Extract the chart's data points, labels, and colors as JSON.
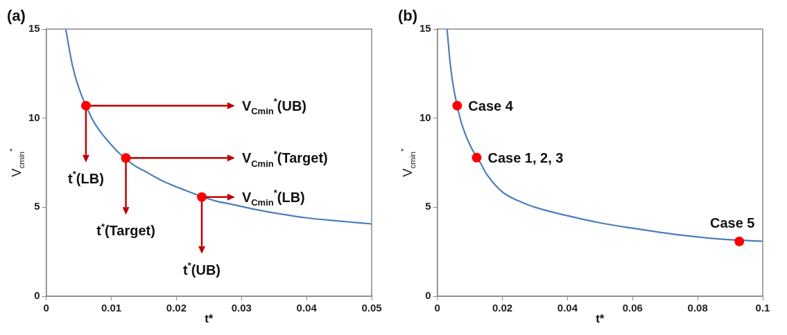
{
  "chart_data": [
    {
      "type": "line",
      "title": "(a)",
      "xlabel": "t*",
      "ylabel": "V$_{cmin}$$^{*}$",
      "xlim": [
        0,
        0.05
      ],
      "xticks": [
        0,
        0.01,
        0.02,
        0.03,
        0.04,
        0.05
      ],
      "ylim": [
        0,
        15
      ],
      "yticks": [
        0,
        5,
        10,
        15
      ],
      "grid": false,
      "series": [
        {
          "color": "#4a7ebb",
          "marker": "none",
          "x": [
            0.003,
            0.004,
            0.005,
            0.007,
            0.008,
            0.01,
            0.011,
            0.0135,
            0.015,
            0.018,
            0.021,
            0.026,
            0.028,
            0.032,
            0.036,
            0.04,
            0.045,
            0.05
          ],
          "values": [
            15,
            13.0,
            11.7,
            10.0,
            9.4,
            8.5,
            8.1,
            7.35,
            7.05,
            6.45,
            6.0,
            5.35,
            5.2,
            4.88,
            4.62,
            4.4,
            4.22,
            4.06
          ]
        },
        {
          "type": "scatter",
          "color": "#ff0000",
          "marker": "circle",
          "x": [
            0.0061,
            0.01224,
            0.0239
          ],
          "values": [
            10.7,
            7.76,
            5.57
          ]
        }
      ],
      "annotations": [
        {
          "text": "V$_{Cmin}$$^{*}$(UB)",
          "x": 0.0061,
          "y": 10.7
        },
        {
          "text": "V$_{Cmin}$$^{*}$(Target)",
          "x": 0.01224,
          "y": 7.76
        },
        {
          "text": "V$_{Cmin}$$^{*}$(LB)",
          "x": 0.0239,
          "y": 5.57
        },
        {
          "text": "t$^{*}$(LB)",
          "x": 0.0061,
          "y": 10.7
        },
        {
          "text": "t$^{*}$(Target)",
          "x": 0.01224,
          "y": 7.76
        },
        {
          "text": "t$^{*}$(UB)",
          "x": 0.0239,
          "y": 5.57
        }
      ]
    },
    {
      "type": "line",
      "title": "(b)",
      "xlabel": "t*",
      "ylabel": "V$_{cmin}$$^{*}$",
      "xlim": [
        0,
        0.1
      ],
      "xticks": [
        0,
        0.02,
        0.04,
        0.06,
        0.08,
        0.1
      ],
      "ylim": [
        0,
        15
      ],
      "yticks": [
        0,
        5,
        10,
        15
      ],
      "grid": false,
      "series": [
        {
          "color": "#4a7ebb",
          "marker": "none",
          "x": [
            0.003,
            0.004,
            0.005,
            0.007,
            0.008,
            0.01,
            0.0135,
            0.015,
            0.02,
            0.025,
            0.03,
            0.04,
            0.05,
            0.06,
            0.07,
            0.08,
            0.09,
            0.1
          ],
          "values": [
            15,
            13.0,
            11.7,
            10.0,
            9.4,
            8.5,
            7.4,
            6.9,
            5.85,
            5.35,
            5.0,
            4.52,
            4.12,
            3.82,
            3.55,
            3.33,
            3.17,
            3.09
          ]
        },
        {
          "type": "scatter",
          "color": "#ff0000",
          "marker": "circle",
          "x": [
            0.0061,
            0.0121,
            0.0928
          ],
          "values": [
            10.7,
            7.78,
            3.08
          ]
        }
      ],
      "annotations": [
        {
          "text": "Case 4",
          "x": 0.0061,
          "y": 10.7
        },
        {
          "text": "Case 1, 2, 3",
          "x": 0.0121,
          "y": 7.78
        },
        {
          "text": "Case 5",
          "x": 0.0928,
          "y": 3.08
        }
      ]
    }
  ]
}
